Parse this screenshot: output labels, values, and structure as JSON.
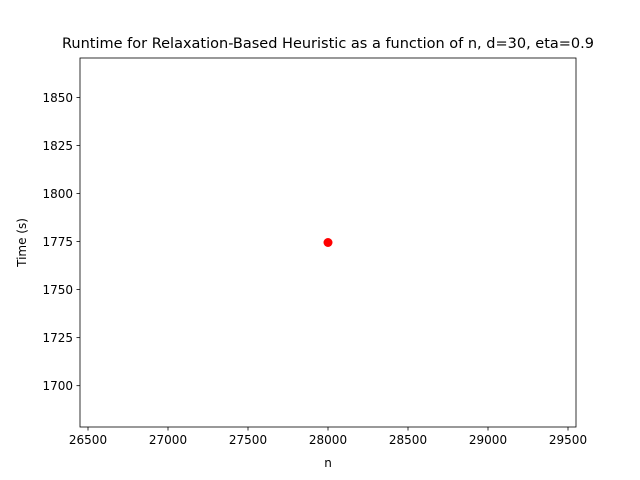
{
  "chart_data": {
    "type": "scatter",
    "title": "Runtime for Relaxation-Based Heuristic as a function of n, d=30, eta=0.9",
    "xlabel": "n",
    "ylabel": "Time (s)",
    "xlim": [
      26450,
      29550
    ],
    "ylim": [
      1678.5,
      1870.5
    ],
    "xticks": [
      26500,
      27000,
      27500,
      28000,
      28500,
      29000,
      29500
    ],
    "yticks": [
      1700,
      1725,
      1750,
      1775,
      1800,
      1825,
      1850
    ],
    "grid": false,
    "legend": "none",
    "series": [
      {
        "color": "#ff0000",
        "marker": "circle",
        "points": [
          {
            "x": 28000,
            "y": 1774.5
          }
        ]
      }
    ]
  }
}
